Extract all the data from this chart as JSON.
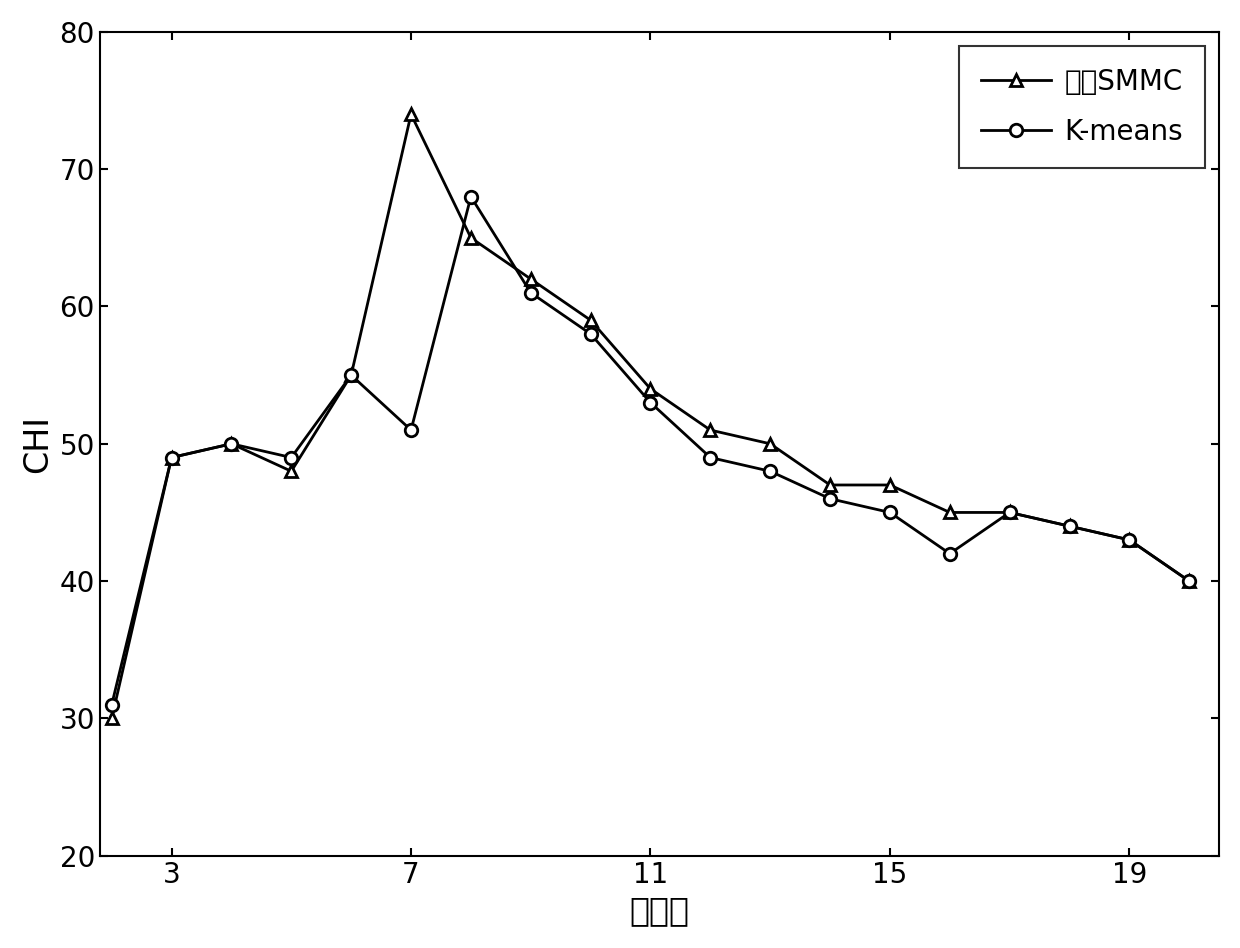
{
  "smmc_x": [
    2,
    3,
    4,
    5,
    6,
    7,
    8,
    9,
    10,
    11,
    12,
    13,
    14,
    15,
    16,
    17,
    18,
    19,
    20
  ],
  "smmc_y": [
    30,
    49,
    50,
    48,
    55,
    74,
    65,
    62,
    59,
    54,
    51,
    50,
    47,
    47,
    45,
    45,
    44,
    43,
    40
  ],
  "kmeans_x": [
    2,
    3,
    4,
    5,
    6,
    7,
    8,
    9,
    10,
    11,
    12,
    13,
    14,
    15,
    16,
    17,
    18,
    19,
    20
  ],
  "kmeans_y": [
    31,
    49,
    50,
    49,
    55,
    51,
    68,
    61,
    58,
    53,
    49,
    48,
    46,
    45,
    42,
    45,
    44,
    43,
    40
  ],
  "xlabel": "聚类数",
  "ylabel": "CHI",
  "legend_smmc": "改进SMMC",
  "legend_kmeans": "K-means",
  "xlim_min": 1.8,
  "xlim_max": 20.5,
  "ylim_min": 20,
  "ylim_max": 80,
  "xticks": [
    3,
    7,
    11,
    15,
    19
  ],
  "yticks": [
    20,
    30,
    40,
    50,
    60,
    70,
    80
  ],
  "line_color": "#000000",
  "line_width": 2.0,
  "marker_size": 9,
  "marker_edge_width": 2.0,
  "font_size_label": 24,
  "font_size_tick": 20,
  "font_size_legend": 20
}
